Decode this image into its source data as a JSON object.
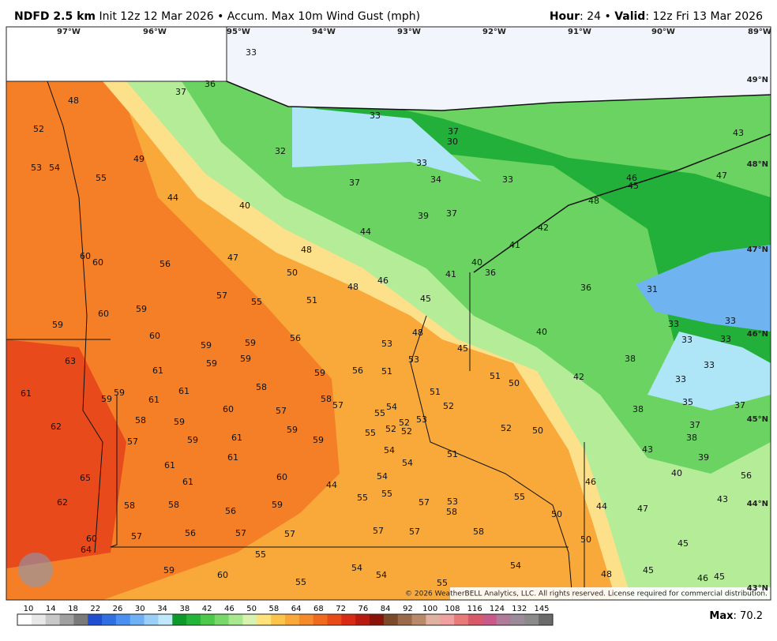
{
  "header": {
    "model": "NDFD 2.5 km",
    "init": "Init 12z 12 Mar 2026 • Accum. Max 10m Wind Gust (mph)",
    "hour_label": "Hour",
    "hour_value": ": 24 •",
    "valid_label": "Valid",
    "valid_value": ": 12z Fri 13 Mar 2026"
  },
  "longitudes": [
    "97°W",
    "96°W",
    "95°W",
    "94°W",
    "93°W",
    "92°W",
    "91°W",
    "90°W",
    "89°W"
  ],
  "latitudes": [
    "49°N",
    "48°N",
    "47°N",
    "46°N",
    "45°N",
    "44°N",
    "43°N"
  ],
  "map_labels": [
    "33",
    "36",
    "37",
    "48",
    "33",
    "37",
    "30",
    "52",
    "32",
    "49",
    "43",
    "53",
    "54",
    "33",
    "55",
    "34",
    "37",
    "33",
    "46",
    "45",
    "47",
    "44",
    "40",
    "48",
    "39",
    "37",
    "44",
    "42",
    "60",
    "60",
    "56",
    "47",
    "48",
    "41",
    "40",
    "50",
    "41",
    "36",
    "46",
    "48",
    "36",
    "31",
    "57",
    "55",
    "51",
    "45",
    "59",
    "60",
    "59",
    "33",
    "33",
    "60",
    "56",
    "48",
    "40",
    "33",
    "33",
    "59",
    "59",
    "53",
    "45",
    "63",
    "59",
    "59",
    "53",
    "38",
    "61",
    "59",
    "56",
    "51",
    "33",
    "51",
    "50",
    "42",
    "61",
    "59",
    "61",
    "58",
    "33",
    "59",
    "61",
    "58",
    "51",
    "57",
    "57",
    "60",
    "54",
    "52",
    "55",
    "38",
    "35",
    "37",
    "62",
    "58",
    "59",
    "53",
    "52",
    "52",
    "52",
    "52",
    "50",
    "37",
    "59",
    "55",
    "61",
    "57",
    "59",
    "59",
    "38",
    "54",
    "51",
    "43",
    "39",
    "61",
    "54",
    "61",
    "65",
    "60",
    "54",
    "61",
    "46",
    "40",
    "44",
    "56",
    "55",
    "55",
    "57",
    "53",
    "55",
    "62",
    "58",
    "58",
    "56",
    "59",
    "58",
    "50",
    "44",
    "47",
    "43",
    "57",
    "56",
    "57",
    "57",
    "57",
    "57",
    "58",
    "60",
    "64",
    "50",
    "45",
    "55",
    "59",
    "60",
    "54",
    "54",
    "54",
    "48",
    "45",
    "46",
    "45",
    "55",
    "55"
  ],
  "copyright": "© 2026 WeatherBELL Analytics, LLC. All rights reserved. License required for commercial distribution.",
  "colorbar": {
    "labels": [
      "10",
      "14",
      "18",
      "22",
      "26",
      "30",
      "34",
      "38",
      "42",
      "46",
      "50",
      "58",
      "64",
      "68",
      "72",
      "76",
      "84",
      "92",
      "100",
      "108",
      "116",
      "124",
      "132",
      "145"
    ],
    "colors": [
      "#ffffff",
      "#e8e8e8",
      "#c8c8c8",
      "#a0a0a0",
      "#7a7a7a",
      "#1f4fd0",
      "#2f6fe0",
      "#4a90f0",
      "#6fb0f5",
      "#9ad0f8",
      "#bfe8fb",
      "#0d9a2a",
      "#22b53a",
      "#4cc94a",
      "#78d96a",
      "#a8e88f",
      "#d8f3b0",
      "#ffe27a",
      "#fcc54a",
      "#f9a93a",
      "#f58a2a",
      "#f06a1e",
      "#e84a18",
      "#d82a14",
      "#b81a10",
      "#8a1208",
      "#7a4a2a",
      "#9a6a4a",
      "#b88a6a",
      "#e0b0a0",
      "#f0a0a0",
      "#e87a7a",
      "#d85a6a",
      "#c85a8a",
      "#b07a9a",
      "#9a8a9a",
      "#8a8a8a",
      "#6a6a6a"
    ]
  },
  "footer": {
    "max_label": "Max",
    "max_value": ": 70.2"
  }
}
